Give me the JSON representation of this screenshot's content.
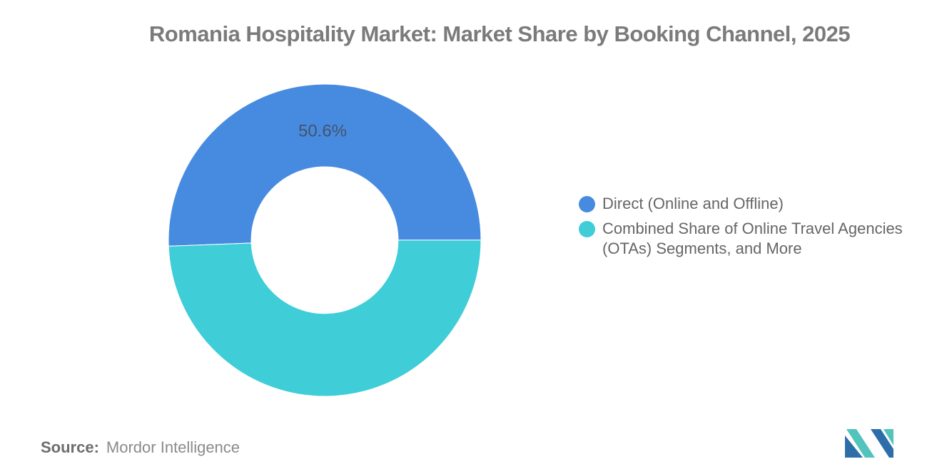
{
  "title": "Romania Hospitality Market: Market Share by Booking Channel, 2025",
  "chart_data": {
    "type": "pie",
    "subtype": "donut",
    "title": "Romania Hospitality Market: Market Share by Booking Channel, 2025",
    "series": [
      {
        "name": "Direct (Online and Offline)",
        "value": 50.6,
        "color": "#478BE0",
        "label": "50.6%"
      },
      {
        "name": "Combined Share of Online Travel Agencies (OTAs) Segments, and More",
        "value": 49.4,
        "color": "#3FCDD8",
        "label": ""
      }
    ],
    "total": 100,
    "start_angle_deg": -92.2,
    "inner_radius_ratio": 0.47,
    "label_color": "#44546A",
    "legend_position": "right"
  },
  "source": {
    "label": "Source:",
    "text": "Mordor Intelligence"
  },
  "logo": {
    "name": "mordor-intelligence-logo",
    "teal": "#52C3BD",
    "blue": "#2D6DA9"
  }
}
